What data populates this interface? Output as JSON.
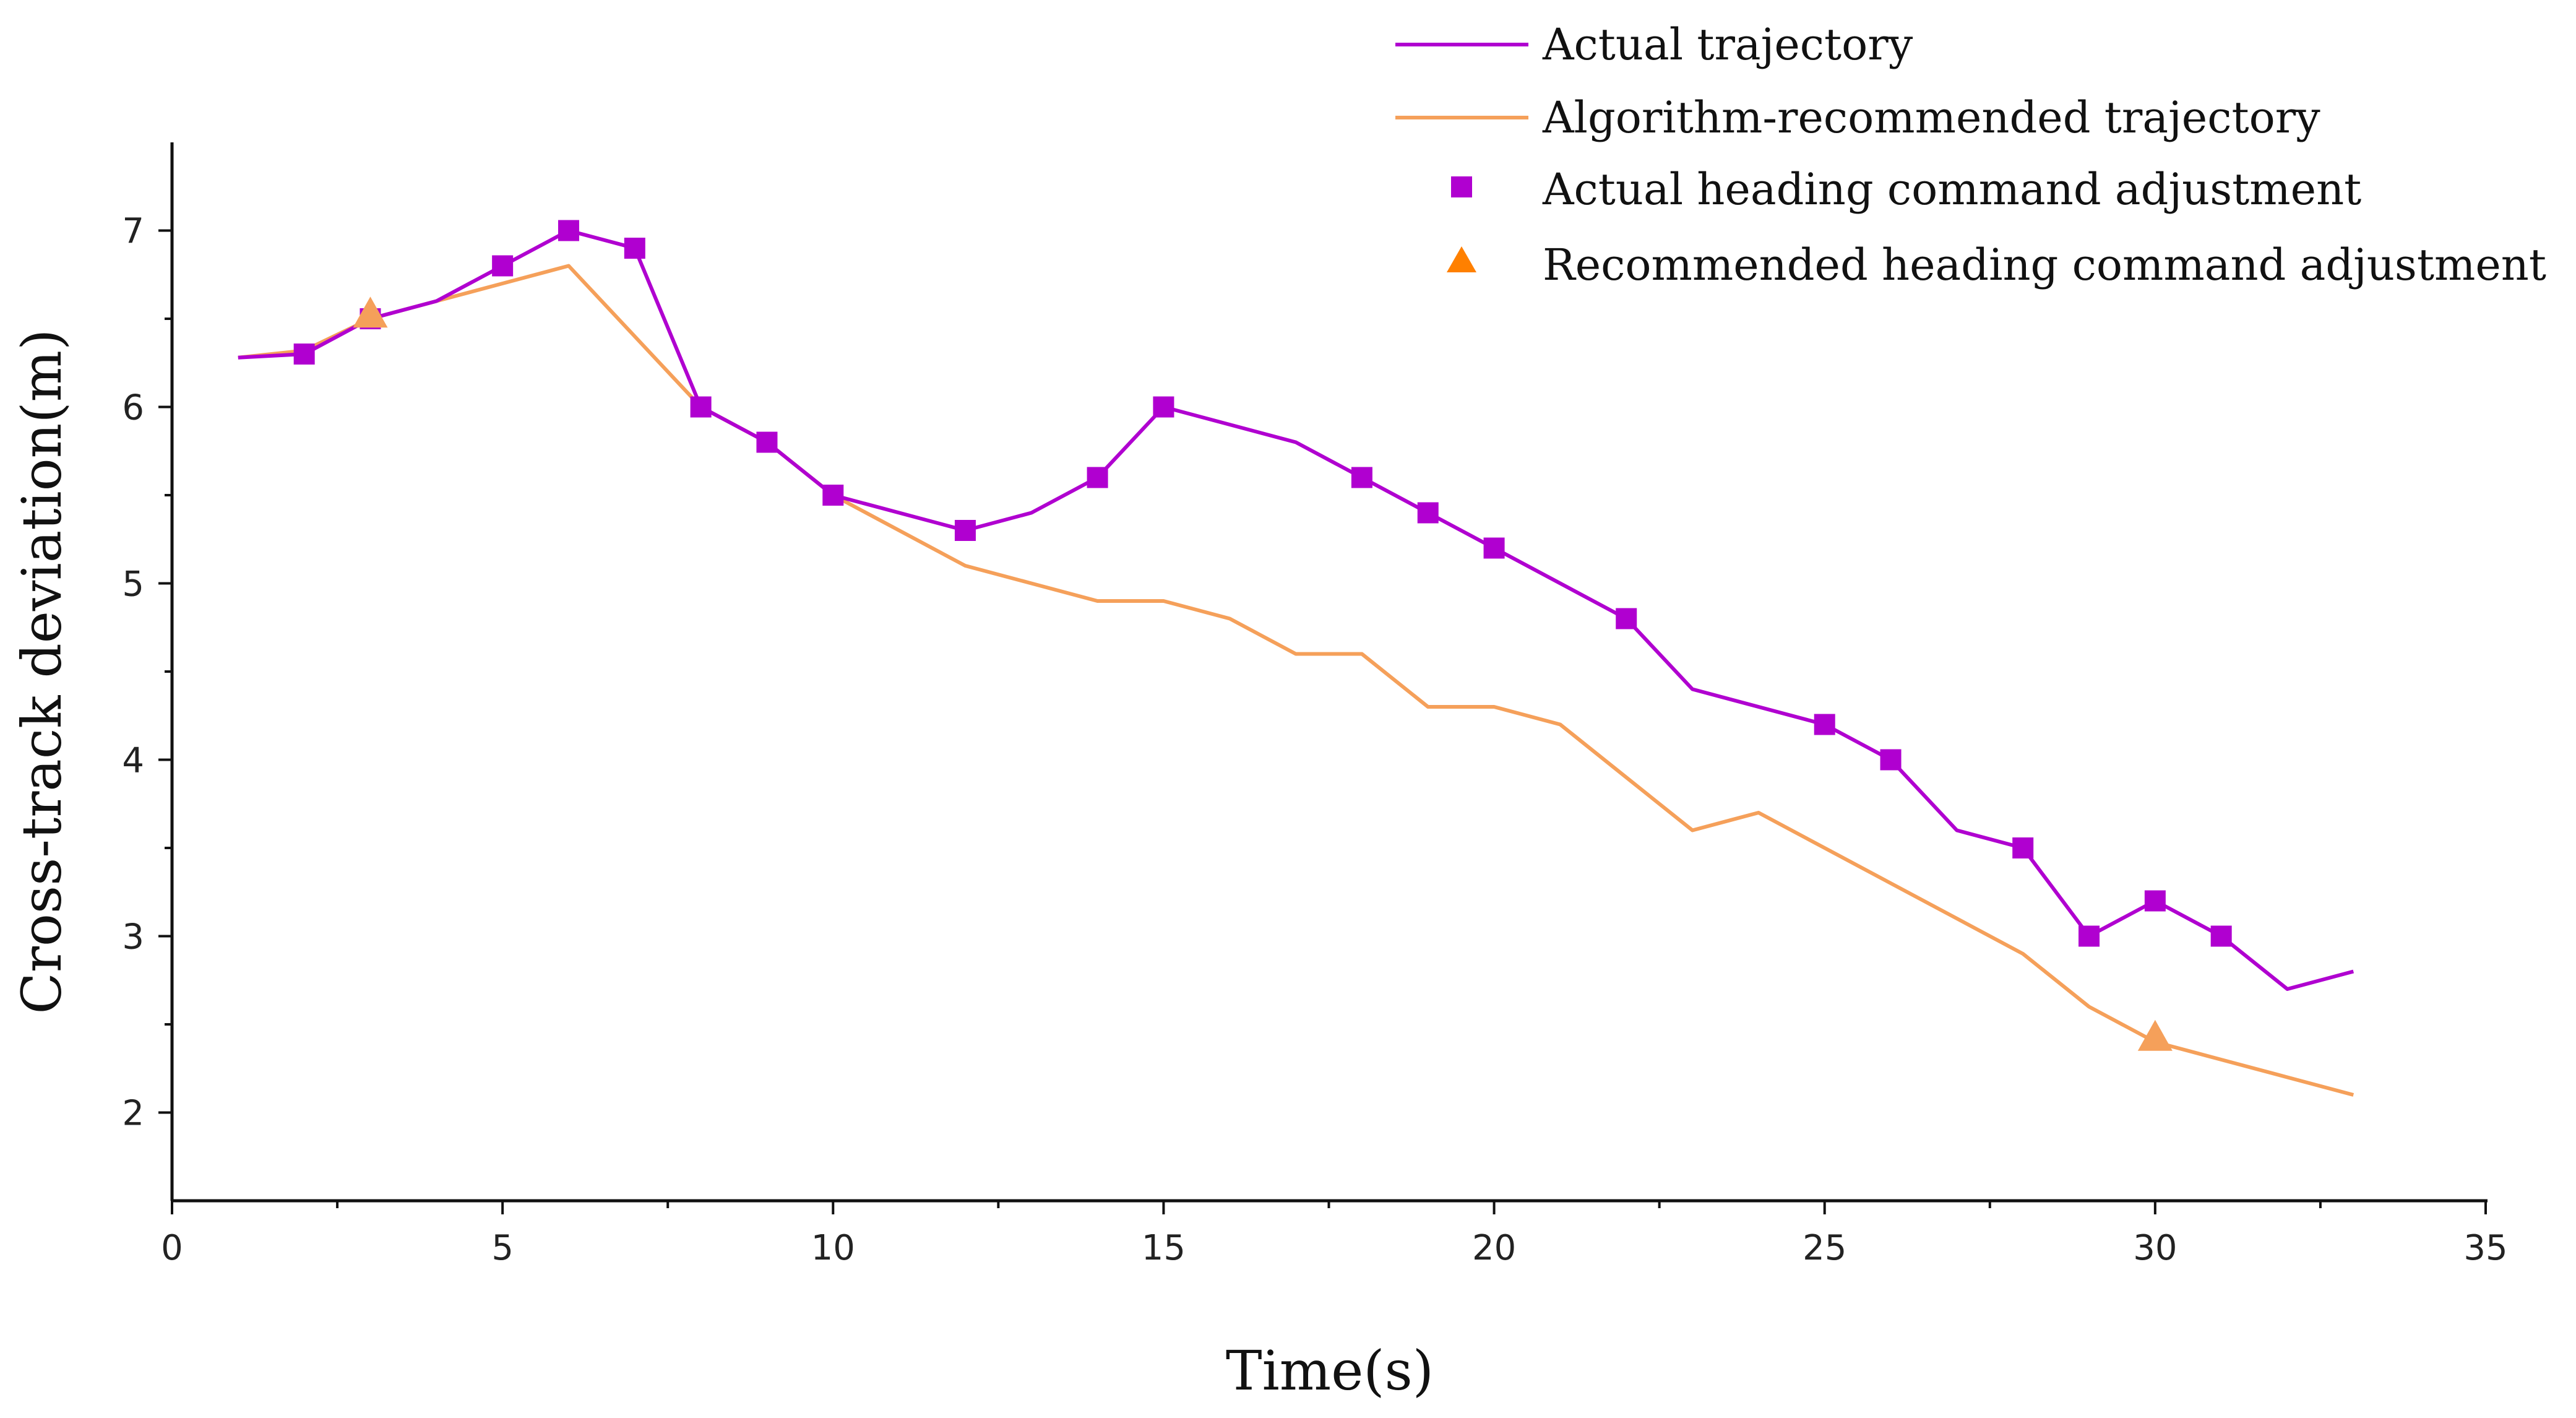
{
  "chart_data": {
    "type": "line",
    "title": "",
    "xlabel": "Time(s)",
    "ylabel": "Cross-track deviation(m)",
    "xlim": [
      0,
      35
    ],
    "ylim": [
      1.5,
      7.5
    ],
    "xticks": [
      0,
      5,
      10,
      15,
      20,
      25,
      30,
      35
    ],
    "yticks": [
      2,
      3,
      4,
      5,
      6,
      7
    ],
    "grid": false,
    "legend_position": "top-right",
    "series": [
      {
        "name": "Actual trajectory",
        "kind": "line",
        "color": "#b000d0",
        "x": [
          1,
          2,
          3,
          4,
          5,
          6,
          7,
          8,
          9,
          10,
          12,
          13,
          14,
          15,
          17,
          18,
          19,
          20,
          22,
          23,
          25,
          26,
          27,
          28,
          29,
          30,
          31,
          32,
          33
        ],
        "y": [
          6.28,
          6.3,
          6.5,
          6.6,
          6.8,
          7.0,
          6.9,
          6.0,
          5.8,
          5.5,
          5.3,
          5.4,
          5.6,
          6.0,
          5.8,
          5.6,
          5.4,
          5.2,
          4.8,
          4.4,
          4.2,
          4.0,
          3.6,
          3.5,
          3.0,
          3.2,
          3.0,
          2.7,
          2.8
        ]
      },
      {
        "name": "Algorithm-recommended trajectory",
        "kind": "line",
        "color": "#f5a05a",
        "x": [
          1,
          2,
          3,
          4,
          5,
          6,
          7,
          8,
          9,
          10,
          11,
          12,
          13,
          14,
          15,
          16,
          17,
          18,
          19,
          20,
          21,
          22,
          23,
          24,
          25,
          26,
          27,
          28,
          29,
          30,
          31,
          32,
          33
        ],
        "y": [
          6.28,
          6.32,
          6.5,
          6.6,
          6.7,
          6.8,
          6.4,
          6.0,
          5.8,
          5.5,
          5.3,
          5.1,
          5.0,
          4.9,
          4.9,
          4.8,
          4.6,
          4.6,
          4.3,
          4.3,
          4.2,
          3.9,
          3.6,
          3.7,
          3.5,
          3.3,
          3.1,
          2.9,
          2.6,
          2.4,
          2.3,
          2.2,
          2.1
        ]
      },
      {
        "name": "Actual heading command adjustment",
        "kind": "marker",
        "marker": "square",
        "color": "#b000d0",
        "x": [
          2,
          3,
          5,
          6,
          7,
          8,
          9,
          10,
          12,
          14,
          15,
          18,
          19,
          20,
          22,
          25,
          26,
          28,
          29,
          30,
          31
        ],
        "y": [
          6.3,
          6.5,
          6.8,
          7.0,
          6.9,
          6.0,
          5.8,
          5.5,
          5.3,
          5.6,
          6.0,
          5.6,
          5.4,
          5.2,
          4.8,
          4.2,
          4.0,
          3.5,
          3.0,
          3.2,
          3.0
        ]
      },
      {
        "name": "Recommended heading command adjustment",
        "kind": "marker",
        "marker": "triangle",
        "color": "#f5a05a",
        "legend_color": "#ff8000",
        "x": [
          3,
          30
        ],
        "y": [
          6.52,
          2.42
        ]
      }
    ]
  }
}
